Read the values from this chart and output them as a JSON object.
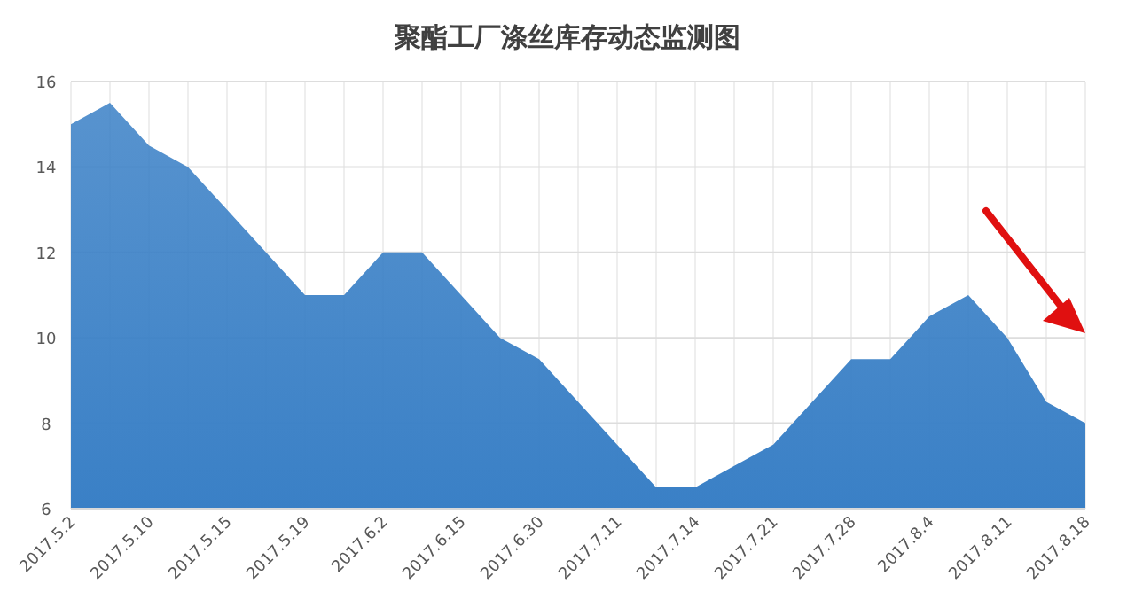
{
  "chart_data": {
    "type": "area",
    "title": "聚酯工厂涤丝库存动态监测图",
    "categories": [
      "2017.5.2",
      null,
      "2017.5.10",
      null,
      "2017.5.15",
      null,
      "2017.5.19",
      null,
      "2017.6.2",
      null,
      "2017.6.15",
      null,
      "2017.6.30",
      null,
      "2017.7.11",
      null,
      "2017.7.14",
      null,
      "2017.7.21",
      null,
      "2017.7.28",
      null,
      "2017.8.4",
      null,
      "2017.8.11",
      null,
      "2017.8.18"
    ],
    "values": [
      15.0,
      15.5,
      14.5,
      14.0,
      13.0,
      12.0,
      11.0,
      11.0,
      12.0,
      12.0,
      11.0,
      10.0,
      9.5,
      8.5,
      7.5,
      6.5,
      6.5,
      7.0,
      7.5,
      8.5,
      9.5,
      9.5,
      10.5,
      11.0,
      10.0,
      8.5,
      8.0
    ],
    "color": "#3a80c6",
    "ylim": [
      6,
      16
    ],
    "yticks": [
      6,
      8,
      10,
      12,
      14,
      16
    ],
    "grid": true
  }
}
